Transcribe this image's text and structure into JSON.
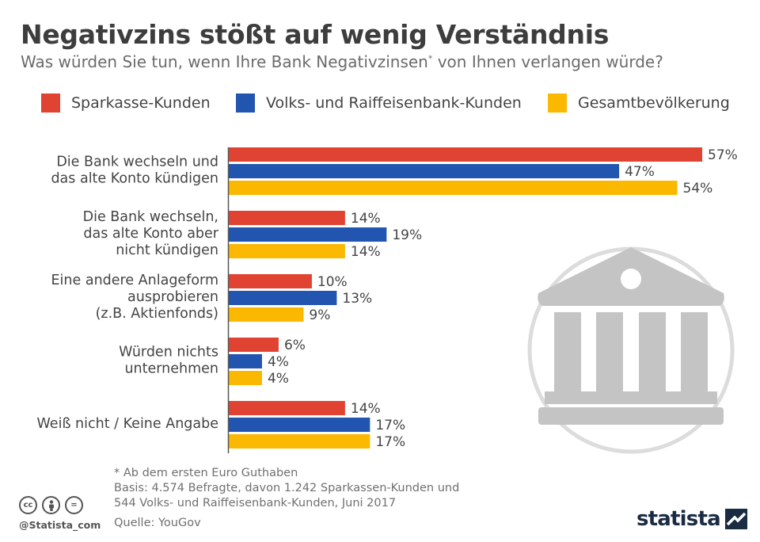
{
  "header": {
    "title": "Negativzins stößt auf wenig Verständnis",
    "subtitle_main": "Was würden Sie tun, wenn Ihre Bank Negativzinsen",
    "subtitle_sup": "*",
    "subtitle_end": " von Ihnen verlangen würde?"
  },
  "colors": {
    "sparkasse": "#e04332",
    "volks": "#2255b0",
    "gesamt": "#fbb800",
    "axis": "#555555",
    "icon": "#c4c4c4"
  },
  "chart_data": {
    "type": "bar",
    "orientation": "horizontal",
    "title": "Negativzins stößt auf wenig Verständnis",
    "xlim": [
      0,
      57
    ],
    "categories": [
      [
        "Die Bank wechseln und",
        "das alte Konto kündigen"
      ],
      [
        "Die Bank wechseln,",
        "das alte Konto aber",
        "nicht kündigen"
      ],
      [
        "Eine andere Anlageform",
        "ausprobieren",
        "(z.B. Aktienfonds)"
      ],
      [
        "Würden nichts",
        "unternehmen"
      ],
      [
        "Weiß nicht / Keine Angabe"
      ]
    ],
    "series": [
      {
        "name": "Sparkasse-Kunden",
        "values": [
          57,
          14,
          10,
          6,
          14
        ]
      },
      {
        "name": "Volks- und Raiffeisenbank-Kunden",
        "values": [
          47,
          19,
          13,
          4,
          17
        ]
      },
      {
        "name": "Gesamtbevölkerung",
        "values": [
          54,
          14,
          9,
          4,
          17
        ]
      }
    ],
    "value_suffix": "%",
    "legend_position": "top"
  },
  "footer": {
    "note": "* Ab dem ersten Euro Guthaben",
    "basis_line1": "Basis: 4.574 Befragte, davon 1.242 Sparkassen-Kunden und",
    "basis_line2": "544 Volks- und Raiffeisenbank-Kunden, Juni 2017",
    "source": "Quelle: YouGov",
    "handle": "@Statista_com",
    "logo": "statista",
    "cc_icons": [
      "cc",
      "by",
      "="
    ]
  }
}
